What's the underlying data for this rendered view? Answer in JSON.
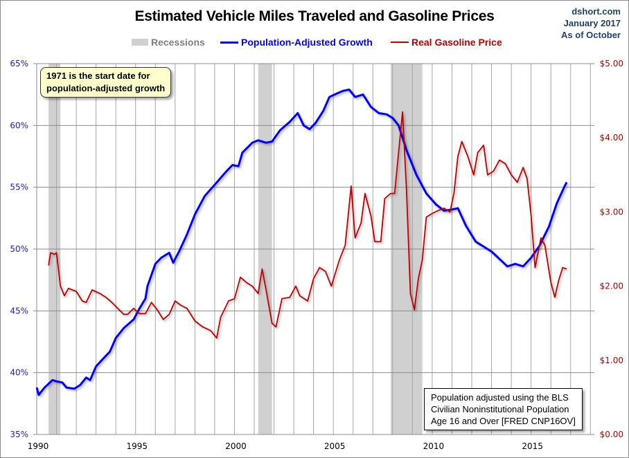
{
  "chart_data": {
    "type": "line",
    "title": "Estimated Vehicle Miles Traveled and Gasoline Prices",
    "credit": [
      "dshort.com",
      "January 2017",
      "As of October"
    ],
    "xlabel": "",
    "ylabel_left": "",
    "ylabel_right": "",
    "xlim": [
      1990,
      2018.2
    ],
    "x_ticks": [
      1990,
      1995,
      2000,
      2005,
      2010,
      2015
    ],
    "x_tick_labels": [
      "1990",
      "1995",
      "2000",
      "2005",
      "2010",
      "2015"
    ],
    "ylim_left": [
      35,
      65
    ],
    "y_ticks_left": [
      35,
      40,
      45,
      50,
      55,
      60,
      65
    ],
    "y_tick_labels_left": [
      "35%",
      "40%",
      "45%",
      "50%",
      "55%",
      "60%",
      "65%"
    ],
    "ylim_right": [
      0,
      5
    ],
    "y_ticks_right": [
      0,
      1,
      2,
      3,
      4,
      5
    ],
    "y_tick_labels_right": [
      "$0.00",
      "$1.00",
      "$2.00",
      "$3.00",
      "$4.00",
      "$5.00"
    ],
    "grid": true,
    "legend_position": "top-center",
    "legend": [
      {
        "name": "Recessions",
        "color": "#d0d0d0",
        "text_color": "#808080"
      },
      {
        "name": "Population-Adjusted Growth",
        "color": "#0000ff",
        "text_color": "#0000ff"
      },
      {
        "name": "Real Gasoline Price",
        "color": "#c00000",
        "text_color": "#c00000"
      }
    ],
    "recessions": [
      [
        1990.6,
        1991.2
      ],
      [
        2001.2,
        2001.9
      ],
      [
        2007.9,
        2009.5
      ]
    ],
    "series": [
      {
        "name": "Population-Adjusted Growth",
        "axis": "left",
        "unit": "%",
        "color": "#0000ff",
        "x": [
          1990.0,
          1990.1,
          1990.4,
          1990.8,
          1991.0,
          1991.3,
          1991.5,
          1991.9,
          1992.2,
          1992.5,
          1992.7,
          1993.0,
          1993.4,
          1993.7,
          1994.0,
          1994.4,
          1994.9,
          1995.2,
          1995.5,
          1995.6,
          1996.0,
          1996.3,
          1996.7,
          1996.9,
          1997.2,
          1997.6,
          1998.0,
          1998.5,
          1999.0,
          1999.6,
          1999.9,
          2000.2,
          2000.4,
          2000.9,
          2001.2,
          2001.6,
          2001.9,
          2002.3,
          2002.8,
          2003.2,
          2003.5,
          2003.8,
          2004.1,
          2004.5,
          2004.8,
          2005.2,
          2005.5,
          2005.8,
          2006.1,
          2006.5,
          2006.9,
          2007.3,
          2007.7,
          2008.0,
          2008.3,
          2008.7,
          2009.2,
          2009.7,
          2010.2,
          2010.6,
          2011.0,
          2011.3,
          2011.7,
          2012.2,
          2012.6,
          2013.0,
          2013.4,
          2013.8,
          2014.2,
          2014.6,
          2015.0,
          2015.4,
          2015.9,
          2016.3,
          2016.7,
          2016.8
        ],
        "values": [
          38.8,
          38.2,
          38.8,
          39.4,
          39.3,
          39.2,
          38.8,
          38.7,
          39.0,
          39.6,
          39.4,
          40.5,
          41.2,
          41.7,
          42.8,
          43.6,
          44.3,
          45.2,
          46.0,
          47.0,
          48.8,
          49.3,
          49.7,
          48.9,
          49.8,
          51.2,
          52.8,
          54.3,
          55.2,
          56.3,
          56.8,
          56.7,
          57.8,
          58.6,
          58.8,
          58.6,
          58.7,
          59.6,
          60.3,
          61.0,
          60.0,
          59.7,
          60.2,
          61.2,
          62.3,
          62.6,
          62.8,
          62.9,
          62.3,
          62.5,
          61.5,
          61.0,
          60.9,
          60.6,
          60.0,
          58.0,
          56.0,
          54.5,
          53.6,
          53.1,
          53.2,
          53.3,
          51.9,
          50.6,
          50.2,
          49.8,
          49.2,
          48.6,
          48.8,
          48.6,
          49.3,
          50.2,
          51.8,
          53.7,
          55.1,
          55.4
        ]
      },
      {
        "name": "Real Gasoline Price",
        "axis": "right",
        "unit": "$",
        "color": "#c00000",
        "x": [
          1990.6,
          1990.7,
          1990.9,
          1991.0,
          1991.2,
          1991.4,
          1991.6,
          1991.8,
          1992.0,
          1992.3,
          1992.5,
          1992.8,
          1993.2,
          1993.5,
          1993.8,
          1994.1,
          1994.4,
          1994.6,
          1994.9,
          1995.2,
          1995.5,
          1995.8,
          1996.1,
          1996.4,
          1996.7,
          1997.0,
          1997.3,
          1997.6,
          1998.0,
          1998.4,
          1998.8,
          1999.1,
          1999.3,
          1999.7,
          2000.0,
          2000.3,
          2000.6,
          2000.9,
          2001.2,
          2001.4,
          2001.6,
          2001.9,
          2002.1,
          2002.4,
          2002.8,
          2003.1,
          2003.3,
          2003.7,
          2004.0,
          2004.3,
          2004.6,
          2004.9,
          2005.3,
          2005.6,
          2005.9,
          2006.1,
          2006.4,
          2006.6,
          2006.9,
          2007.1,
          2007.4,
          2007.6,
          2007.9,
          2008.1,
          2008.3,
          2008.5,
          2008.7,
          2008.9,
          2009.1,
          2009.3,
          2009.5,
          2009.7,
          2010.0,
          2010.3,
          2010.6,
          2010.9,
          2011.1,
          2011.3,
          2011.5,
          2011.8,
          2012.1,
          2012.3,
          2012.6,
          2012.8,
          2013.1,
          2013.4,
          2013.7,
          2014.0,
          2014.3,
          2014.6,
          2014.8,
          2015.0,
          2015.2,
          2015.5,
          2015.7,
          2016.0,
          2016.2,
          2016.4,
          2016.6,
          2016.8
        ],
        "values": [
          2.28,
          2.45,
          2.43,
          2.45,
          2.0,
          1.87,
          1.97,
          1.95,
          1.93,
          1.8,
          1.78,
          1.95,
          1.9,
          1.85,
          1.78,
          1.7,
          1.62,
          1.62,
          1.7,
          1.63,
          1.63,
          1.78,
          1.68,
          1.55,
          1.62,
          1.8,
          1.74,
          1.7,
          1.53,
          1.45,
          1.4,
          1.3,
          1.58,
          1.8,
          1.83,
          2.12,
          2.05,
          2.0,
          1.9,
          2.23,
          1.95,
          1.5,
          1.45,
          1.83,
          1.85,
          2.0,
          1.87,
          1.8,
          2.1,
          2.25,
          2.2,
          2.0,
          2.35,
          2.55,
          3.35,
          2.65,
          2.85,
          3.25,
          2.95,
          2.6,
          2.6,
          3.18,
          3.25,
          3.25,
          3.8,
          4.35,
          3.3,
          1.9,
          1.68,
          2.1,
          2.35,
          2.93,
          2.98,
          3.02,
          3.05,
          3.0,
          3.25,
          3.75,
          3.95,
          3.75,
          3.5,
          3.8,
          3.9,
          3.5,
          3.55,
          3.7,
          3.65,
          3.5,
          3.4,
          3.6,
          3.45,
          2.95,
          2.25,
          2.65,
          2.55,
          2.05,
          1.85,
          2.08,
          2.25,
          2.23
        ]
      }
    ],
    "annotations": [
      {
        "text_lines": [
          "1971  is the start date for",
          "population-adjusted growth"
        ]
      },
      {
        "text_lines": [
          "Population adjusted using the BLS",
          "Civilian Noninstitutional Population",
          "Age 16 and Over  [FRED CNP16OV]"
        ]
      }
    ]
  }
}
